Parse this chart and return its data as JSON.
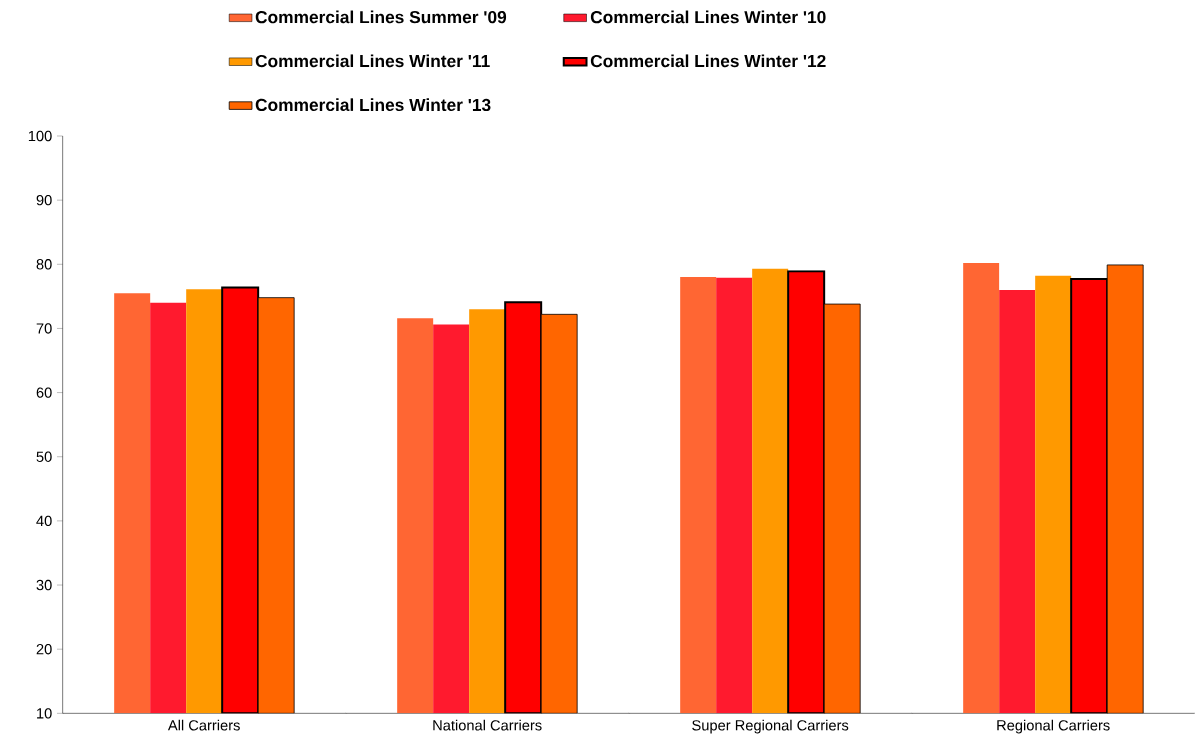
{
  "chart_data": {
    "type": "bar",
    "categories": [
      "All Carriers",
      "National Carriers",
      "Super Regional Carriers",
      "Regional Carriers"
    ],
    "series": [
      {
        "name": "Commercial Lines Summer '09",
        "color": "#ff6633",
        "values": [
          75.5,
          71.6,
          78.0,
          80.2
        ]
      },
      {
        "name": "Commercial Lines Winter '10",
        "color": "#ff1a2e",
        "values": [
          74.0,
          70.6,
          77.9,
          76.0
        ]
      },
      {
        "name": "Commercial Lines Winter '11",
        "color": "#ff9900",
        "values": [
          76.1,
          73.0,
          79.3,
          78.2
        ]
      },
      {
        "name": "Commercial Lines Winter '12",
        "color": "#ff0000",
        "values": [
          76.4,
          74.1,
          78.9,
          77.7
        ]
      },
      {
        "name": "Commercial Lines Winter '13",
        "color": "#ff6600",
        "values": [
          74.8,
          72.2,
          73.8,
          79.9
        ]
      }
    ],
    "ylim": [
      10,
      100
    ],
    "yticks": [
      10,
      20,
      30,
      40,
      50,
      60,
      70,
      80,
      90,
      100
    ],
    "legend": "top",
    "grid": false
  }
}
